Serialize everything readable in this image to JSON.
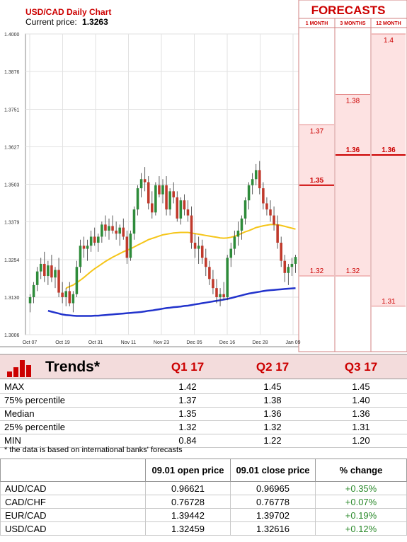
{
  "chart_data": {
    "type": "candlestick",
    "title": "USD/CAD Daily Chart",
    "current_price_label": "Current price:",
    "current_price": "1.3263",
    "y_ticks": [
      "1.4000",
      "1.3876",
      "1.3751",
      "1.3627",
      "1.3503",
      "1.3379",
      "1.3254",
      "1.3130",
      "1.3006"
    ],
    "ylim": [
      1.3006,
      1.4
    ],
    "x_ticks": [
      "Oct 07",
      "Oct 19",
      "Oct 31",
      "Nov 11",
      "Nov 23",
      "Dec 05",
      "Dec 16",
      "Dec 28",
      "Jan 09"
    ],
    "up_color": "#2e8b3a",
    "down_color": "#c0392b",
    "ma_fast_color": "#f5c518",
    "ma_slow_color": "#2233cc",
    "candles": [
      [
        1.311,
        1.314,
        1.308,
        1.313
      ],
      [
        1.313,
        1.318,
        1.311,
        1.317
      ],
      [
        1.317,
        1.323,
        1.315,
        1.3215
      ],
      [
        1.3215,
        1.326,
        1.319,
        1.324
      ],
      [
        1.324,
        1.328,
        1.318,
        1.32
      ],
      [
        1.32,
        1.325,
        1.317,
        1.3235
      ],
      [
        1.3235,
        1.327,
        1.318,
        1.3195
      ],
      [
        1.3195,
        1.323,
        1.316,
        1.322
      ],
      [
        1.322,
        1.326,
        1.313,
        1.3145
      ],
      [
        1.3145,
        1.318,
        1.311,
        1.313
      ],
      [
        1.313,
        1.316,
        1.31,
        1.315
      ],
      [
        1.315,
        1.318,
        1.31,
        1.311
      ],
      [
        1.311,
        1.315,
        1.308,
        1.314
      ],
      [
        1.314,
        1.325,
        1.313,
        1.323
      ],
      [
        1.323,
        1.332,
        1.321,
        1.33
      ],
      [
        1.33,
        1.333,
        1.326,
        1.329
      ],
      [
        1.329,
        1.332,
        1.325,
        1.33
      ],
      [
        1.33,
        1.335,
        1.328,
        1.333
      ],
      [
        1.333,
        1.336,
        1.33,
        1.331
      ],
      [
        1.331,
        1.334,
        1.328,
        1.333
      ],
      [
        1.333,
        1.338,
        1.331,
        1.337
      ],
      [
        1.337,
        1.34,
        1.333,
        1.335
      ],
      [
        1.335,
        1.339,
        1.332,
        1.3365
      ],
      [
        1.3365,
        1.34,
        1.334,
        1.335
      ],
      [
        1.335,
        1.338,
        1.332,
        1.334
      ],
      [
        1.334,
        1.337,
        1.33,
        1.336
      ],
      [
        1.336,
        1.339,
        1.332,
        1.333
      ],
      [
        1.333,
        1.335,
        1.324,
        1.326
      ],
      [
        1.326,
        1.335,
        1.325,
        1.334
      ],
      [
        1.334,
        1.343,
        1.332,
        1.342
      ],
      [
        1.342,
        1.35,
        1.34,
        1.349
      ],
      [
        1.349,
        1.354,
        1.346,
        1.352
      ],
      [
        1.352,
        1.356,
        1.348,
        1.351
      ],
      [
        1.351,
        1.353,
        1.342,
        1.344
      ],
      [
        1.344,
        1.348,
        1.339,
        1.341
      ],
      [
        1.341,
        1.351,
        1.34,
        1.35
      ],
      [
        1.35,
        1.353,
        1.346,
        1.347
      ],
      [
        1.347,
        1.352,
        1.344,
        1.35
      ],
      [
        1.35,
        1.353,
        1.34,
        1.342
      ],
      [
        1.342,
        1.349,
        1.34,
        1.348
      ],
      [
        1.348,
        1.351,
        1.344,
        1.346
      ],
      [
        1.346,
        1.348,
        1.338,
        1.339
      ],
      [
        1.339,
        1.346,
        1.337,
        1.345
      ],
      [
        1.345,
        1.347,
        1.34,
        1.342
      ],
      [
        1.342,
        1.345,
        1.338,
        1.34
      ],
      [
        1.34,
        1.343,
        1.329,
        1.331
      ],
      [
        1.331,
        1.334,
        1.326,
        1.329
      ],
      [
        1.329,
        1.333,
        1.324,
        1.33
      ],
      [
        1.33,
        1.332,
        1.324,
        1.326
      ],
      [
        1.326,
        1.329,
        1.32,
        1.323
      ],
      [
        1.323,
        1.325,
        1.317,
        1.319
      ],
      [
        1.319,
        1.322,
        1.314,
        1.316
      ],
      [
        1.316,
        1.319,
        1.311,
        1.313
      ],
      [
        1.313,
        1.316,
        1.31,
        1.314
      ],
      [
        1.314,
        1.318,
        1.312,
        1.313
      ],
      [
        1.313,
        1.327,
        1.312,
        1.326
      ],
      [
        1.326,
        1.331,
        1.323,
        1.329
      ],
      [
        1.329,
        1.335,
        1.327,
        1.333
      ],
      [
        1.333,
        1.338,
        1.33,
        1.335
      ],
      [
        1.335,
        1.34,
        1.332,
        1.339
      ],
      [
        1.339,
        1.346,
        1.337,
        1.345
      ],
      [
        1.345,
        1.351,
        1.342,
        1.35
      ],
      [
        1.35,
        1.354,
        1.347,
        1.352
      ],
      [
        1.352,
        1.357,
        1.35,
        1.355
      ],
      [
        1.355,
        1.358,
        1.347,
        1.349
      ],
      [
        1.349,
        1.351,
        1.342,
        1.344
      ],
      [
        1.344,
        1.346,
        1.34,
        1.342
      ],
      [
        1.342,
        1.345,
        1.338,
        1.34
      ],
      [
        1.34,
        1.343,
        1.335,
        1.337
      ],
      [
        1.337,
        1.34,
        1.329,
        1.331
      ],
      [
        1.331,
        1.333,
        1.323,
        1.325
      ],
      [
        1.325,
        1.327,
        1.318,
        1.321
      ],
      [
        1.321,
        1.324,
        1.317,
        1.323
      ],
      [
        1.323,
        1.326,
        1.32,
        1.324
      ],
      [
        1.324,
        1.327,
        1.321,
        1.3263
      ]
    ],
    "ma_fast": [
      null,
      null,
      null,
      null,
      null,
      null,
      null,
      null,
      null,
      null,
      1.316,
      1.3165,
      1.317,
      1.3178,
      1.3186,
      1.3195,
      1.3205,
      1.3215,
      1.3224,
      1.3232,
      1.324,
      1.3248,
      1.3255,
      1.3262,
      1.3268,
      1.3274,
      1.328,
      1.3285,
      1.329,
      1.3296,
      1.3302,
      1.3308,
      1.3314,
      1.332,
      1.3324,
      1.3328,
      1.3332,
      1.3336,
      1.3338,
      1.334,
      1.3342,
      1.3343,
      1.3344,
      1.3344,
      1.3344,
      1.3342,
      1.334,
      1.3338,
      1.3336,
      1.3334,
      1.3332,
      1.333,
      1.3328,
      1.3326,
      1.3325,
      1.3326,
      1.3328,
      1.3331,
      1.3336,
      1.3341,
      1.3346,
      1.335,
      1.3355,
      1.336,
      1.3363,
      1.3366,
      1.3368,
      1.337,
      1.337,
      1.3369,
      1.3367,
      1.3364,
      1.3361,
      1.3358,
      1.3355
    ],
    "ma_slow": [
      null,
      null,
      null,
      null,
      null,
      1.3085,
      1.3082,
      1.3079,
      1.3076,
      1.3073,
      1.3071,
      1.307,
      1.3069,
      1.3068,
      1.3068,
      1.3068,
      1.3068,
      1.3068,
      1.3069,
      1.3069,
      1.307,
      1.3071,
      1.3072,
      1.3073,
      1.3074,
      1.3075,
      1.3076,
      1.3077,
      1.3078,
      1.3079,
      1.308,
      1.3081,
      1.3083,
      1.3085,
      1.3086,
      1.3088,
      1.309,
      1.3092,
      1.3094,
      1.3095,
      1.3097,
      1.3098,
      1.3099,
      1.3101,
      1.3102,
      1.3104,
      1.3106,
      1.3108,
      1.311,
      1.3112,
      1.3114,
      1.3116,
      1.3118,
      1.312,
      1.3122,
      1.3124,
      1.3127,
      1.313,
      1.3133,
      1.3136,
      1.3139,
      1.3142,
      1.3144,
      1.3146,
      1.3148,
      1.315,
      1.3152,
      1.3153,
      1.3154,
      1.3155,
      1.3156,
      1.3157,
      1.3158,
      1.3159,
      1.316
    ],
    "forecasts": {
      "title": "FORECASTS",
      "columns": [
        {
          "label": "1 MONTH",
          "low": 1.32,
          "median": 1.35,
          "high": 1.37,
          "low_label": "1.32",
          "median_label": "1.35",
          "high_label": "1.37"
        },
        {
          "label": "3 MONTHS",
          "low": 1.32,
          "median": 1.36,
          "high": 1.38,
          "low_label": "1.32",
          "median_label": "1.36",
          "high_label": "1.38"
        },
        {
          "label": "12 MONTH",
          "low": 1.31,
          "median": 1.36,
          "high": 1.4,
          "low_label": "1.31",
          "median_label": "1.36",
          "high_label": "1.4"
        }
      ]
    }
  },
  "trends": {
    "title": "Trends*",
    "columns": [
      "Q1 17",
      "Q2 17",
      "Q3 17"
    ],
    "rows": [
      {
        "label": "MAX",
        "values": [
          "1.42",
          "1.45",
          "1.45"
        ]
      },
      {
        "label": "75% percentile",
        "values": [
          "1.37",
          "1.38",
          "1.40"
        ]
      },
      {
        "label": "Median",
        "values": [
          "1.35",
          "1.36",
          "1.36"
        ]
      },
      {
        "label": "25% percentile",
        "values": [
          "1.32",
          "1.32",
          "1.31"
        ]
      },
      {
        "label": "MIN",
        "values": [
          "0.84",
          "1.22",
          "1.20"
        ]
      }
    ],
    "note": "* the data is based on international banks' forecasts"
  },
  "prices": {
    "headers": [
      "",
      "09.01 open price",
      "09.01 close price",
      "% change"
    ],
    "rows": [
      {
        "pair": "AUD/CAD",
        "open": "0.96621",
        "close": "0.96965",
        "change": "+0.35%"
      },
      {
        "pair": "CAD/CHF",
        "open": "0.76728",
        "close": "0.76778",
        "change": "+0.07%"
      },
      {
        "pair": "EUR/CAD",
        "open": "1.39442",
        "close": "1.39702",
        "change": "+0.19%"
      },
      {
        "pair": "USD/CAD",
        "open": "1.32459",
        "close": "1.32616",
        "change": "+0.12%"
      }
    ]
  }
}
